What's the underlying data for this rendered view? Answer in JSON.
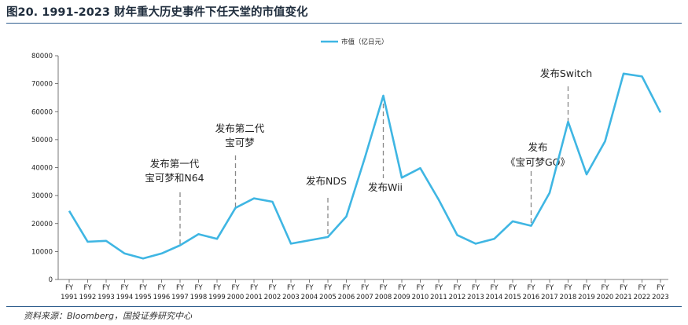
{
  "title": "图20. 1991-2023 财年重大历史事件下任天堂的市值变化",
  "source": "资料来源：Bloomberg，国投证券研究中心",
  "chart_data": {
    "type": "line",
    "legend": "top-center",
    "grid": false,
    "ylim": [
      0,
      80000
    ],
    "yticks": [
      "0",
      "10000",
      "20000",
      "30000",
      "40000",
      "50000",
      "60000",
      "70000",
      "80000"
    ],
    "line_color": "#3fb6e3",
    "x_prefix": "FY",
    "x": [
      "1991",
      "1992",
      "1993",
      "1994",
      "1995",
      "1996",
      "1997",
      "1998",
      "1999",
      "2000",
      "2001",
      "2002",
      "2003",
      "2004",
      "2005",
      "2006",
      "2007",
      "2008",
      "2009",
      "2010",
      "2011",
      "2012",
      "2013",
      "2014",
      "2015",
      "2016",
      "2017",
      "2018",
      "2019",
      "2020",
      "2021",
      "2022",
      "2023"
    ],
    "series": [
      {
        "name": "市值（亿日元）",
        "values": [
          24500,
          13500,
          13800,
          9300,
          7500,
          9300,
          12200,
          16200,
          14500,
          25600,
          29000,
          27800,
          12800,
          14000,
          15200,
          22500,
          43500,
          65700,
          36400,
          39800,
          28500,
          15900,
          12800,
          14500,
          20800,
          19200,
          31000,
          56400,
          37600,
          49400,
          73600,
          72600,
          59700
        ]
      }
    ],
    "annotations": [
      {
        "lines": [
          "发布第一代",
          "宝可梦和N64"
        ],
        "x": "1997",
        "y": 12200
      },
      {
        "lines": [
          "发布第二代",
          "宝可梦"
        ],
        "x": "2000",
        "y": 25600
      },
      {
        "lines": [
          "发布NDS"
        ],
        "x": "2005",
        "y": 15200
      },
      {
        "lines": [
          "发布Wii"
        ],
        "x": "2008",
        "y": 65700
      },
      {
        "lines": [
          "发布",
          "《宝可梦GO》"
        ],
        "x": "2016",
        "y": 19200
      },
      {
        "lines": [
          "发布Switch"
        ],
        "x": "2018",
        "y": 56400
      }
    ]
  }
}
